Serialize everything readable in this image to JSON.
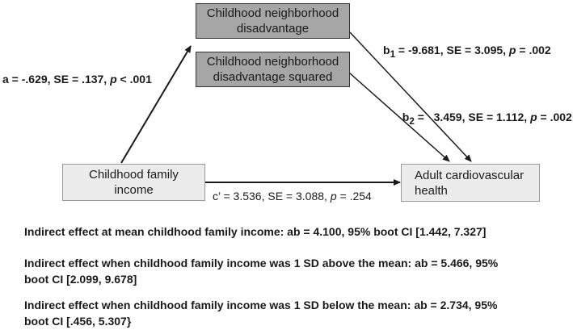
{
  "nodes": {
    "neighborhood": {
      "line1": "Childhood neighborhood",
      "line2": "disadvantage"
    },
    "neighborhood_sq": {
      "line1": "Childhood neighborhood",
      "line2": "disadvantage squared"
    },
    "family_income": {
      "line1": "Childhood family",
      "line2": "income"
    },
    "outcome": {
      "line1": "Adult cardiovascular",
      "line2": "health"
    }
  },
  "paths": {
    "a": {
      "pre": "a = -.629, SE = .137, ",
      "p": "p",
      "post": " < .001"
    },
    "b1": {
      "sym": "b",
      "sub": "1",
      "pre": " = -9.681, SE = 3.095, ",
      "p": "p",
      "post": " = .002"
    },
    "b2": {
      "sym": "b",
      "sub": "2",
      "pre": " =   3.459, SE = 1.112, ",
      "p": "p",
      "post": " = .002"
    },
    "c": {
      "pre": "c’ = 3.536, SE = 3.088, ",
      "p": "p",
      "post": " = .254"
    }
  },
  "effects": {
    "mean": {
      "line1": "Indirect effect at mean childhood family income: ab = 4.100, 95% boot CI [1.442, 7.327]"
    },
    "above": {
      "line1": "Indirect effect when childhood family income was 1 SD above the mean: ab = 5.466, 95%",
      "line2": "boot CI [2.099, 9.678]"
    },
    "below": {
      "line1": "Indirect effect when childhood family income  was 1 SD below the mean: ab = 2.734, 95%",
      "line2": "boot CI [.456, 5.307}"
    }
  }
}
